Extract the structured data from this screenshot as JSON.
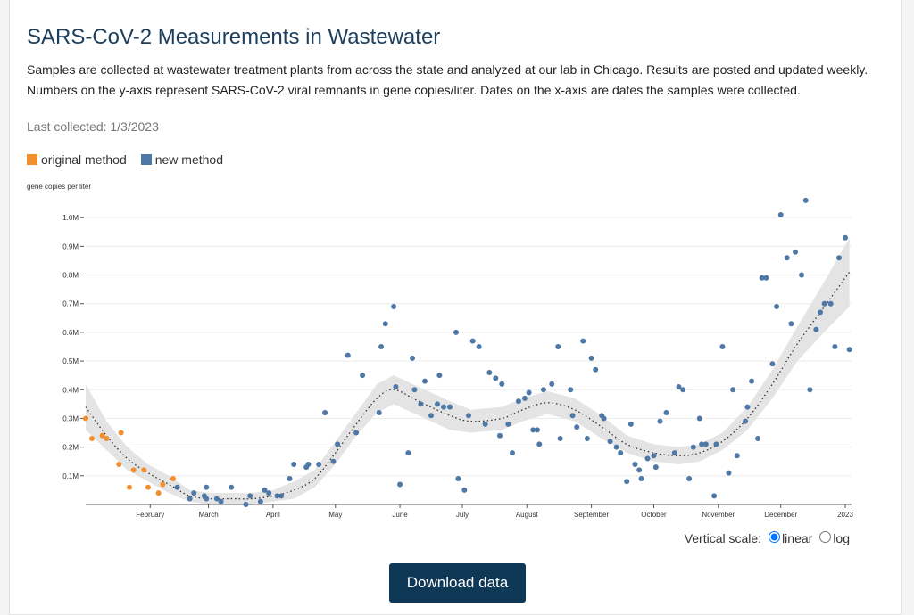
{
  "page": {
    "title": "SARS-CoV-2 Measurements in Wastewater",
    "description": "Samples are collected at wastewater treatment plants from across the state and analyzed at our lab in Chicago. Results are posted and updated weekly. Numbers on the y-axis represent SARS-CoV-2 viral remnants in gene copies/liter. Dates on the x-axis are dates the samples were collected.",
    "last_collected": "Last collected: 1/3/2023",
    "scale_label": "Vertical scale:",
    "scale_options": [
      "linear",
      "log"
    ],
    "scale_selected": "linear",
    "download_button": "Download data"
  },
  "chart_data": {
    "type": "scatter",
    "y_label": "gene copies per liter",
    "xlim": [
      0,
      368
    ],
    "xticks": [
      {
        "value": 31,
        "label": "February"
      },
      {
        "value": 59,
        "label": "March"
      },
      {
        "value": 90,
        "label": "April"
      },
      {
        "value": 120,
        "label": "May"
      },
      {
        "value": 151,
        "label": "June"
      },
      {
        "value": 181,
        "label": "July"
      },
      {
        "value": 212,
        "label": "August"
      },
      {
        "value": 243,
        "label": "September"
      },
      {
        "value": 273,
        "label": "October"
      },
      {
        "value": 304,
        "label": "November"
      },
      {
        "value": 334,
        "label": "December"
      },
      {
        "value": 365,
        "label": "2023"
      }
    ],
    "ylim": [
      0,
      1100000
    ],
    "yticks": [
      {
        "value": 100000,
        "label": "0.1M"
      },
      {
        "value": 200000,
        "label": "0.2M"
      },
      {
        "value": 300000,
        "label": "0.3M"
      },
      {
        "value": 400000,
        "label": "0.4M"
      },
      {
        "value": 500000,
        "label": "0.5M"
      },
      {
        "value": 600000,
        "label": "0.6M"
      },
      {
        "value": 700000,
        "label": "0.7M"
      },
      {
        "value": 800000,
        "label": "0.8M"
      },
      {
        "value": 900000,
        "label": "0.9M"
      },
      {
        "value": 1000000,
        "label": "1.0M"
      }
    ],
    "grid": true,
    "series": [
      {
        "name": "original method",
        "color": "#f28e2b",
        "x": [
          0,
          3,
          8,
          10,
          16,
          17,
          21,
          23,
          28,
          30,
          35,
          37,
          42
        ],
        "values": [
          300000,
          230000,
          240000,
          230000,
          140000,
          250000,
          60000,
          120000,
          120000,
          60000,
          40000,
          70000,
          90000
        ]
      },
      {
        "name": "new method",
        "color": "#4e79a7",
        "x": [
          44,
          50,
          52,
          57,
          58,
          58,
          63,
          65,
          70,
          77,
          79,
          84,
          86,
          88,
          92,
          94,
          98,
          100,
          106,
          107,
          112,
          115,
          119,
          121,
          126,
          130,
          133,
          141,
          142,
          144,
          148,
          149,
          151,
          155,
          157,
          158,
          161,
          163,
          166,
          169,
          170,
          172,
          175,
          178,
          179,
          182,
          184,
          186,
          189,
          192,
          194,
          197,
          199,
          200,
          203,
          205,
          208,
          211,
          213,
          215,
          217,
          218,
          220,
          224,
          227,
          228,
          233,
          234,
          236,
          239,
          241,
          243,
          245,
          248,
          249,
          252,
          255,
          257,
          260,
          262,
          264,
          266,
          267,
          270,
          273,
          274,
          276,
          279,
          283,
          285,
          287,
          290,
          292,
          295,
          296,
          298,
          302,
          303,
          306,
          309,
          311,
          313,
          317,
          318,
          320,
          323,
          325,
          327,
          330,
          332,
          334,
          337,
          339,
          341,
          344,
          346,
          348,
          351,
          353,
          355,
          358,
          360,
          362,
          365,
          367
        ],
        "values": [
          60000,
          20000,
          40000,
          30000,
          20000,
          60000,
          20000,
          10000,
          60000,
          0,
          30000,
          10000,
          50000,
          40000,
          30000,
          30000,
          90000,
          140000,
          130000,
          140000,
          140000,
          320000,
          150000,
          210000,
          520000,
          250000,
          450000,
          320000,
          550000,
          630000,
          690000,
          410000,
          70000,
          180000,
          510000,
          400000,
          350000,
          430000,
          310000,
          350000,
          450000,
          340000,
          340000,
          600000,
          90000,
          50000,
          310000,
          570000,
          550000,
          280000,
          460000,
          440000,
          240000,
          420000,
          280000,
          180000,
          360000,
          370000,
          390000,
          260000,
          260000,
          210000,
          400000,
          420000,
          550000,
          230000,
          400000,
          310000,
          270000,
          570000,
          230000,
          510000,
          470000,
          310000,
          300000,
          220000,
          200000,
          180000,
          80000,
          280000,
          140000,
          120000,
          90000,
          160000,
          170000,
          130000,
          290000,
          320000,
          180000,
          410000,
          400000,
          90000,
          200000,
          300000,
          210000,
          210000,
          30000,
          210000,
          550000,
          110000,
          400000,
          170000,
          290000,
          340000,
          430000,
          230000,
          790000,
          790000,
          490000,
          690000,
          1010000,
          860000,
          630000,
          880000,
          800000,
          1060000,
          400000,
          610000,
          670000,
          700000,
          700000,
          550000,
          860000,
          930000,
          540000
        ]
      }
    ],
    "trend": {
      "color": "#333333",
      "band_color": "#e4e4e4",
      "x": [
        0,
        10,
        20,
        30,
        40,
        50,
        60,
        70,
        80,
        90,
        100,
        110,
        120,
        130,
        140,
        148,
        160,
        175,
        185,
        200,
        210,
        222,
        235,
        248,
        260,
        273,
        285,
        295,
        306,
        318,
        330,
        342,
        356,
        367
      ],
      "values": [
        340000,
        240000,
        160000,
        110000,
        70000,
        30000,
        20000,
        20000,
        20000,
        30000,
        50000,
        90000,
        180000,
        280000,
        370000,
        400000,
        360000,
        310000,
        290000,
        300000,
        330000,
        355000,
        330000,
        270000,
        210000,
        180000,
        170000,
        180000,
        220000,
        300000,
        420000,
        560000,
        700000,
        810000
      ],
      "lower": [
        260000,
        190000,
        120000,
        80000,
        40000,
        10000,
        0,
        0,
        0,
        10000,
        20000,
        60000,
        140000,
        240000,
        320000,
        350000,
        310000,
        260000,
        250000,
        260000,
        290000,
        315000,
        290000,
        230000,
        180000,
        150000,
        140000,
        150000,
        190000,
        260000,
        370000,
        500000,
        610000,
        690000
      ],
      "upper": [
        420000,
        290000,
        200000,
        140000,
        100000,
        50000,
        40000,
        40000,
        40000,
        50000,
        80000,
        120000,
        220000,
        320000,
        420000,
        450000,
        410000,
        360000,
        330000,
        340000,
        370000,
        395000,
        370000,
        310000,
        240000,
        210000,
        200000,
        210000,
        250000,
        340000,
        470000,
        620000,
        790000,
        930000
      ]
    }
  }
}
